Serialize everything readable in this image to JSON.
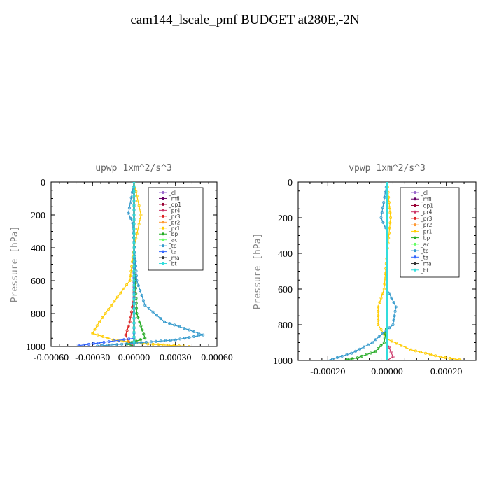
{
  "title": "cam144_lscale_pmf  BUDGET at280E,-2N",
  "chart_data": [
    {
      "type": "line",
      "title": "upwp   1xm^2/s^3",
      "ylabel": "Pressure [hPa]",
      "xlabel": "",
      "xlim": [
        -0.0006,
        0.0006
      ],
      "ylim": [
        0,
        1000
      ],
      "y_inverted": true,
      "xticks": [
        -0.0006,
        -0.0003,
        0.0,
        0.0003,
        0.0006
      ],
      "xtick_labels": [
        "-0.00060",
        "-0.00030",
        "0.00000",
        "0.00030",
        "0.00060"
      ],
      "yticks": [
        0,
        200,
        400,
        600,
        800,
        1000
      ],
      "ytick_labels": [
        "0",
        "200",
        "400",
        "600",
        "800",
        "1000"
      ],
      "legend_position": "top-right",
      "series": [
        {
          "name": "_cl",
          "color": "#9966cc",
          "x": [
            0,
            0,
            0,
            0,
            0,
            0
          ],
          "y": [
            0,
            200,
            400,
            600,
            800,
            1000
          ]
        },
        {
          "name": "_mfl",
          "color": "#660066",
          "x": [
            0,
            0,
            0,
            0,
            0,
            0
          ],
          "y": [
            0,
            200,
            400,
            600,
            800,
            1000
          ]
        },
        {
          "name": "_dp1",
          "color": "#990033",
          "x": [
            0,
            0,
            0,
            0,
            0,
            0
          ],
          "y": [
            0,
            200,
            400,
            600,
            800,
            1000
          ]
        },
        {
          "name": "_pr4",
          "color": "#cc3366",
          "x": [
            0,
            0,
            0,
            0,
            0,
            0
          ],
          "y": [
            0,
            200,
            400,
            600,
            800,
            1000
          ]
        },
        {
          "name": "_pr3",
          "color": "#dd2222",
          "x": [
            0,
            0,
            0,
            0,
            -3e-05,
            -6e-05,
            -4e-05,
            0
          ],
          "y": [
            0,
            200,
            400,
            700,
            850,
            930,
            970,
            1000
          ]
        },
        {
          "name": "_pr2",
          "color": "#ff9933",
          "x": [
            0,
            0,
            0,
            0,
            0,
            0
          ],
          "y": [
            0,
            200,
            400,
            600,
            800,
            1000
          ]
        },
        {
          "name": "_pr1",
          "color": "#ffcc00",
          "x": [
            0,
            5e-05,
            0,
            -3e-05,
            -0.00012,
            -0.00025,
            -0.0003,
            -0.00015,
            0.0001,
            0.0004,
            0.00045
          ],
          "y": [
            0,
            200,
            400,
            600,
            700,
            850,
            920,
            960,
            985,
            1000,
            1000
          ]
        },
        {
          "name": "_bp",
          "color": "#22aa22",
          "x": [
            0,
            0,
            0,
            2e-05,
            6e-05,
            8e-05,
            -5e-05,
            0
          ],
          "y": [
            0,
            200,
            400,
            800,
            900,
            950,
            985,
            1000
          ]
        },
        {
          "name": "_ac",
          "color": "#66ff66",
          "x": [
            0,
            0,
            0,
            0,
            0,
            0
          ],
          "y": [
            0,
            200,
            400,
            600,
            800,
            1000
          ]
        },
        {
          "name": "_tp",
          "color": "#3399cc",
          "x": [
            0,
            -4e-05,
            -1e-05,
            2e-05,
            8e-05,
            0.00022,
            0.0004,
            0.0005,
            0.0003,
            -0.0003
          ],
          "y": [
            0,
            190,
            250,
            600,
            750,
            850,
            900,
            930,
            960,
            1000
          ]
        },
        {
          "name": "_ta",
          "color": "#3366ff",
          "x": [
            0,
            0,
            0,
            0,
            -0.0004,
            -0.0004
          ],
          "y": [
            0,
            200,
            400,
            950,
            995,
            1000
          ]
        },
        {
          "name": "_ma",
          "color": "#333333",
          "x": [
            0,
            0,
            0,
            0,
            0,
            0
          ],
          "y": [
            0,
            200,
            400,
            600,
            800,
            1000
          ]
        },
        {
          "name": "_bt",
          "color": "#33dddd",
          "x": [
            0,
            0,
            0,
            0,
            0,
            0
          ],
          "y": [
            0,
            200,
            400,
            600,
            800,
            1000
          ]
        }
      ]
    },
    {
      "type": "line",
      "title": "vpwp   1xm^2/s^3",
      "ylabel": "Pressure [hPa]",
      "xlabel": "",
      "xlim": [
        -0.0003,
        0.0003
      ],
      "ylim": [
        0,
        1000
      ],
      "y_inverted": true,
      "xticks": [
        -0.0002,
        0.0,
        0.0002
      ],
      "xtick_labels": [
        "-0.00020",
        "0.00000",
        "0.00020"
      ],
      "yticks": [
        0,
        200,
        400,
        600,
        800,
        1000
      ],
      "ytick_labels": [
        "0",
        "200",
        "400",
        "600",
        "800",
        "1000"
      ],
      "legend_position": "top-right",
      "series": [
        {
          "name": "_cl",
          "color": "#9966cc",
          "x": [
            0,
            0,
            0,
            0,
            0,
            0
          ],
          "y": [
            0,
            200,
            400,
            600,
            800,
            1000
          ]
        },
        {
          "name": "_mfl",
          "color": "#660066",
          "x": [
            0,
            0,
            0,
            0,
            0,
            0
          ],
          "y": [
            0,
            200,
            400,
            600,
            800,
            1000
          ]
        },
        {
          "name": "_dp1",
          "color": "#990033",
          "x": [
            0,
            0,
            0,
            0,
            0,
            0
          ],
          "y": [
            0,
            200,
            400,
            600,
            800,
            1000
          ]
        },
        {
          "name": "_pr4",
          "color": "#cc3366",
          "x": [
            0,
            0,
            0,
            0,
            0,
            2e-05,
            0
          ],
          "y": [
            0,
            200,
            400,
            600,
            900,
            980,
            1000
          ]
        },
        {
          "name": "_pr3",
          "color": "#dd2222",
          "x": [
            0,
            0,
            0,
            0,
            0,
            0
          ],
          "y": [
            0,
            200,
            400,
            600,
            800,
            1000
          ]
        },
        {
          "name": "_pr2",
          "color": "#ff9933",
          "x": [
            0,
            0,
            0,
            0,
            0,
            0
          ],
          "y": [
            0,
            200,
            400,
            600,
            800,
            1000
          ]
        },
        {
          "name": "_pr1",
          "color": "#ffcc00",
          "x": [
            0,
            1.2e-05,
            0,
            -1e-05,
            -3e-05,
            -3e-05,
            0,
            8e-05,
            0.00018,
            0.00026
          ],
          "y": [
            0,
            200,
            400,
            600,
            700,
            800,
            880,
            940,
            980,
            1000
          ]
        },
        {
          "name": "_bp",
          "color": "#22aa22",
          "x": [
            0,
            0,
            0,
            0,
            -1e-05,
            -4e-05,
            -0.0001,
            -0.00015
          ],
          "y": [
            0,
            200,
            400,
            800,
            900,
            950,
            985,
            1000
          ]
        },
        {
          "name": "_ac",
          "color": "#66ff66",
          "x": [
            0,
            0,
            0,
            0,
            0,
            0
          ],
          "y": [
            0,
            200,
            400,
            600,
            800,
            1000
          ]
        },
        {
          "name": "_tp",
          "color": "#3399cc",
          "x": [
            0,
            -2e-05,
            0,
            0,
            3e-05,
            2e-05,
            -5e-05,
            -0.00012,
            -0.0002
          ],
          "y": [
            0,
            200,
            280,
            600,
            700,
            800,
            900,
            960,
            1000
          ]
        },
        {
          "name": "_ta",
          "color": "#3366ff",
          "x": [
            0,
            0,
            0,
            0,
            0,
            0
          ],
          "y": [
            0,
            200,
            400,
            600,
            800,
            1000
          ]
        },
        {
          "name": "_ma",
          "color": "#333333",
          "x": [
            0,
            0,
            0,
            0,
            0,
            0
          ],
          "y": [
            0,
            200,
            400,
            600,
            800,
            1000
          ]
        },
        {
          "name": "_bt",
          "color": "#33dddd",
          "x": [
            0,
            0,
            0,
            0,
            0,
            0
          ],
          "y": [
            0,
            200,
            400,
            600,
            800,
            1000
          ]
        }
      ]
    }
  ]
}
